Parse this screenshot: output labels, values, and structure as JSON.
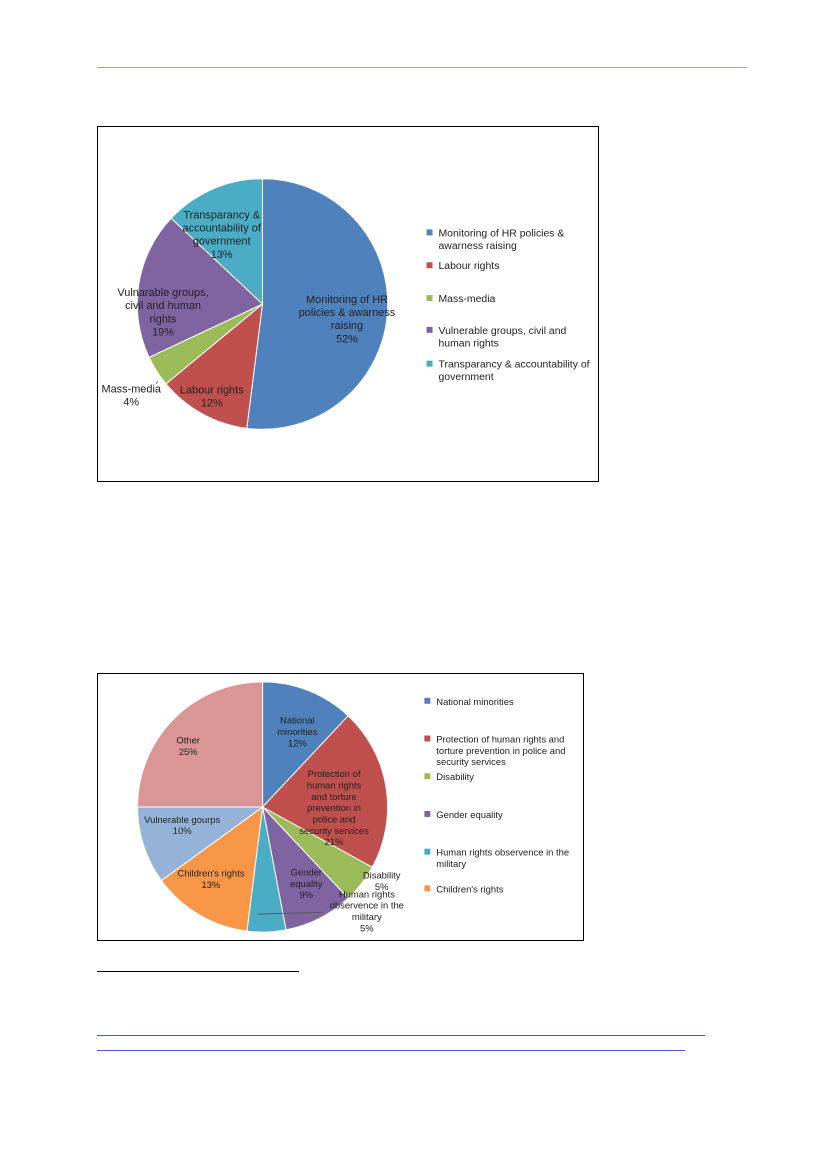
{
  "chart_data": [
    {
      "type": "pie",
      "title": "",
      "legend_position": "right",
      "start_angle_deg": 0,
      "direction": "clockwise",
      "slices": [
        {
          "legend": "Monitoring of HR policies & awarness raising",
          "label": "Monitoring of HR policies & awarness raising",
          "value": 52,
          "value_label": "52%",
          "color": "#4f81bd"
        },
        {
          "legend": "Labour rights",
          "label": "Labour rights",
          "value": 12,
          "value_label": "12%",
          "color": "#c0504d"
        },
        {
          "legend": "Mass-media",
          "label": "Mass-media",
          "value": 4,
          "value_label": "4%",
          "color": "#9bbb59"
        },
        {
          "legend": "Vulnerable groups, civil and human rights",
          "label": "Vulnarable groups, civil and human rights",
          "value": 19,
          "value_label": "19%",
          "color": "#8064a2"
        },
        {
          "legend": "Transparancy & accountability of government",
          "label": "Transparancy & accountability of government",
          "value": 13,
          "value_label": "13%",
          "color": "#4bacc6"
        }
      ]
    },
    {
      "type": "pie",
      "title": "",
      "legend_position": "right",
      "start_angle_deg": 0,
      "direction": "clockwise",
      "slices": [
        {
          "legend": "National minorities",
          "label": "National minorities",
          "value": 12,
          "value_label": "12%",
          "color": "#4f81bd"
        },
        {
          "legend": "Protection of human rights and torture prevention in police and security services",
          "label": "Protection of human rights and torture prevention in police and security services",
          "value": 21,
          "value_label": "21%",
          "color": "#c0504d"
        },
        {
          "legend": "Disability",
          "label": "Disability",
          "value": 5,
          "value_label": "5%",
          "color": "#9bbb59"
        },
        {
          "legend": "Gender equality",
          "label": "Gender equality",
          "value": 9,
          "value_label": "9%",
          "color": "#8064a2"
        },
        {
          "legend": "Human rights observence in the military",
          "label": "Human rights observence in the military",
          "value": 5,
          "value_label": "5%",
          "color": "#4bacc6"
        },
        {
          "legend": "Children's rights",
          "label": "Children's rights",
          "value": 13,
          "value_label": "13%",
          "color": "#f79646"
        },
        {
          "legend": "",
          "label": "Vulnerable gourps",
          "value": 10,
          "value_label": "10%",
          "color": "#95b3d7"
        },
        {
          "legend": "",
          "label": "Other",
          "value": 25,
          "value_label": "25%",
          "color": "#d99694"
        }
      ]
    }
  ]
}
